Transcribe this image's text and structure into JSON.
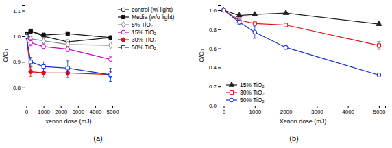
{
  "chart_data": [
    {
      "type": "line",
      "title": "(a)",
      "xlabel": "xenon dose (mJ)",
      "ylabel": "C/C₀",
      "x": [
        0,
        250,
        1000,
        2400,
        4900
      ],
      "xlim": [
        -100,
        5000
      ],
      "xticks": [
        0,
        1000,
        2000,
        3000,
        4000,
        5000
      ],
      "ylim": [
        0.73,
        1.12
      ],
      "yticks": [
        0.8,
        0.9,
        {
          "value": 1.0,
          "label": "1.0"
        },
        1.1
      ],
      "grid": false,
      "legend": "right",
      "series": [
        {
          "name": "control (w/ light)",
          "color": "#222222",
          "marker": "circle-open",
          "values": [
            1.01,
            1.02,
            1.0,
            0.978,
            0.995
          ],
          "errors": [
            0.005,
            0.008,
            0.008,
            0.008,
            0.005
          ]
        },
        {
          "name": "Media (w/o light)",
          "color": "#111111",
          "marker": "square",
          "values": [
            1.01,
            1.02,
            1.005,
            1.01,
            0.995
          ],
          "errors": [
            0.005,
            0.008,
            0.008,
            0.008,
            0.005
          ]
        },
        {
          "name": "5% TiO₂",
          "color": "#888888",
          "marker": "diamond-open",
          "values": [
            1.0,
            0.99,
            0.982,
            0.968,
            0.965
          ],
          "errors": [
            0.005,
            0.008,
            0.008,
            0.008,
            0.005
          ]
        },
        {
          "name": "15% TiO₂",
          "color": "#cc00cc",
          "marker": "circle-open",
          "values": [
            1.0,
            0.975,
            0.96,
            0.95,
            0.91
          ],
          "errors": [
            0.005,
            0.012,
            0.01,
            0.01,
            0.01
          ]
        },
        {
          "name": "30% TiO₂",
          "color": "#dd1111",
          "marker": "circle",
          "values": [
            1.0,
            0.862,
            0.858,
            0.857,
            0.851
          ],
          "errors": [
            0.005,
            0.018,
            0.018,
            0.018,
            0.012
          ]
        },
        {
          "name": "50% TiO₂",
          "color": "#1133cc",
          "marker": "square-open",
          "values": [
            1.0,
            0.9,
            0.882,
            0.876,
            0.85
          ],
          "errors": [
            0.005,
            0.018,
            0.018,
            0.028,
            0.025
          ]
        }
      ]
    },
    {
      "type": "line",
      "title": "(b)",
      "xlabel": "Xenon dose (mJ)",
      "ylabel": "C/C₀",
      "x": [
        0,
        500,
        1000,
        2000,
        5000
      ],
      "xlim": [
        -100,
        5200
      ],
      "xticks": [
        0,
        1000,
        2000,
        3000,
        4000,
        5000
      ],
      "ylim": [
        0.0,
        1.05
      ],
      "yticks": [
        {
          "value": 0.0,
          "label": "0.0"
        },
        0.2,
        0.4,
        0.6,
        0.8,
        {
          "value": 1.0,
          "label": "1.0"
        }
      ],
      "grid": false,
      "legend": "lower left",
      "series": [
        {
          "name": "15% TiO₂",
          "color": "#222222",
          "marker": "triangle",
          "values": [
            1.0,
            0.945,
            0.955,
            0.97,
            0.855
          ],
          "errors": [
            0.005,
            0.015,
            0.015,
            0.01,
            0.015
          ]
        },
        {
          "name": "30% TiO₂",
          "color": "#dd1111",
          "marker": "square-open",
          "values": [
            1.0,
            0.895,
            0.86,
            0.845,
            0.63
          ],
          "errors": [
            0.005,
            0.015,
            0.015,
            0.015,
            0.04
          ]
        },
        {
          "name": "50% TiO₂",
          "color": "#1133cc",
          "marker": "circle-open",
          "values": [
            1.0,
            0.875,
            0.77,
            0.61,
            0.32
          ],
          "errors": [
            0.005,
            0.025,
            0.065,
            0.02,
            0.015
          ]
        }
      ]
    }
  ]
}
